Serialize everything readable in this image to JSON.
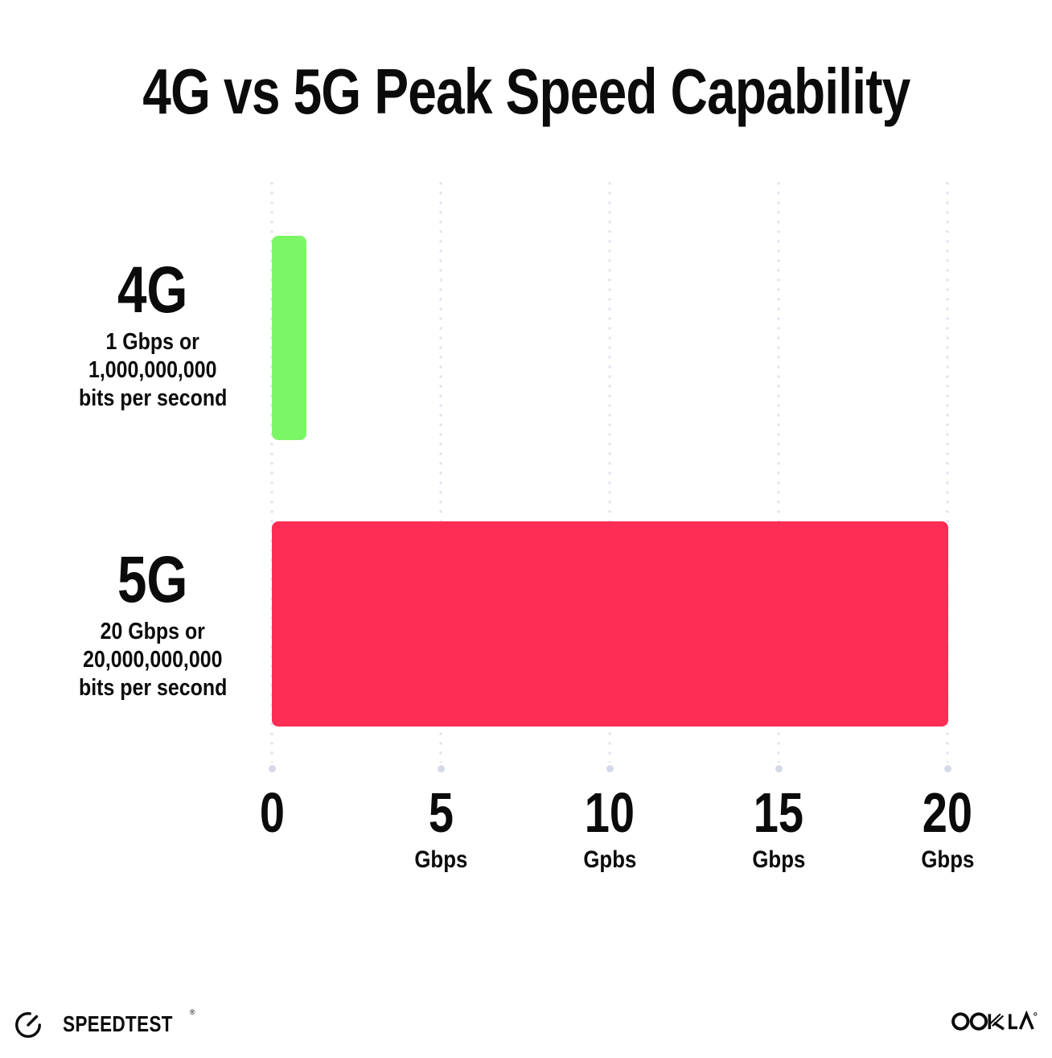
{
  "title": "4G vs 5G Peak Speed Capability",
  "chart_data": {
    "type": "bar",
    "orientation": "horizontal",
    "title": "4G vs 5G Peak Speed Capability",
    "categories": [
      "4G",
      "5G"
    ],
    "values": [
      1,
      20
    ],
    "bar_colors": [
      "#7BF667",
      "#FD2D55"
    ],
    "xlim": [
      0,
      20
    ],
    "grid": "dotted-vertical-gridlines",
    "legend": "none",
    "row_labels": [
      {
        "name": "4G",
        "sub_lines": [
          "1 Gbps or",
          "1,000,000,000",
          "bits per second"
        ]
      },
      {
        "name": "5G",
        "sub_lines": [
          "20 Gbps or",
          "20,000,000,000",
          "bits per second"
        ]
      }
    ],
    "x_ticks": [
      {
        "value": 0,
        "label": "0",
        "unit": ""
      },
      {
        "value": 5,
        "label": "5",
        "unit": "Gbps"
      },
      {
        "value": 10,
        "label": "10",
        "unit": "Gpbs"
      },
      {
        "value": 15,
        "label": "15",
        "unit": "Gbps"
      },
      {
        "value": 20,
        "label": "20",
        "unit": "Gbps"
      }
    ]
  },
  "footer": {
    "speedtest_label": "SPEEDTEST",
    "speedtest_mark": "®",
    "ookla_label": "OOKLA"
  },
  "colors": {
    "background": "#ffffff",
    "text": "#0b0b0b",
    "bar_4g": "#7BF667",
    "bar_5g": "#FD2D55",
    "grid_dot": "#e0e2ef",
    "grid_end_dot": "#d6d9e8"
  }
}
